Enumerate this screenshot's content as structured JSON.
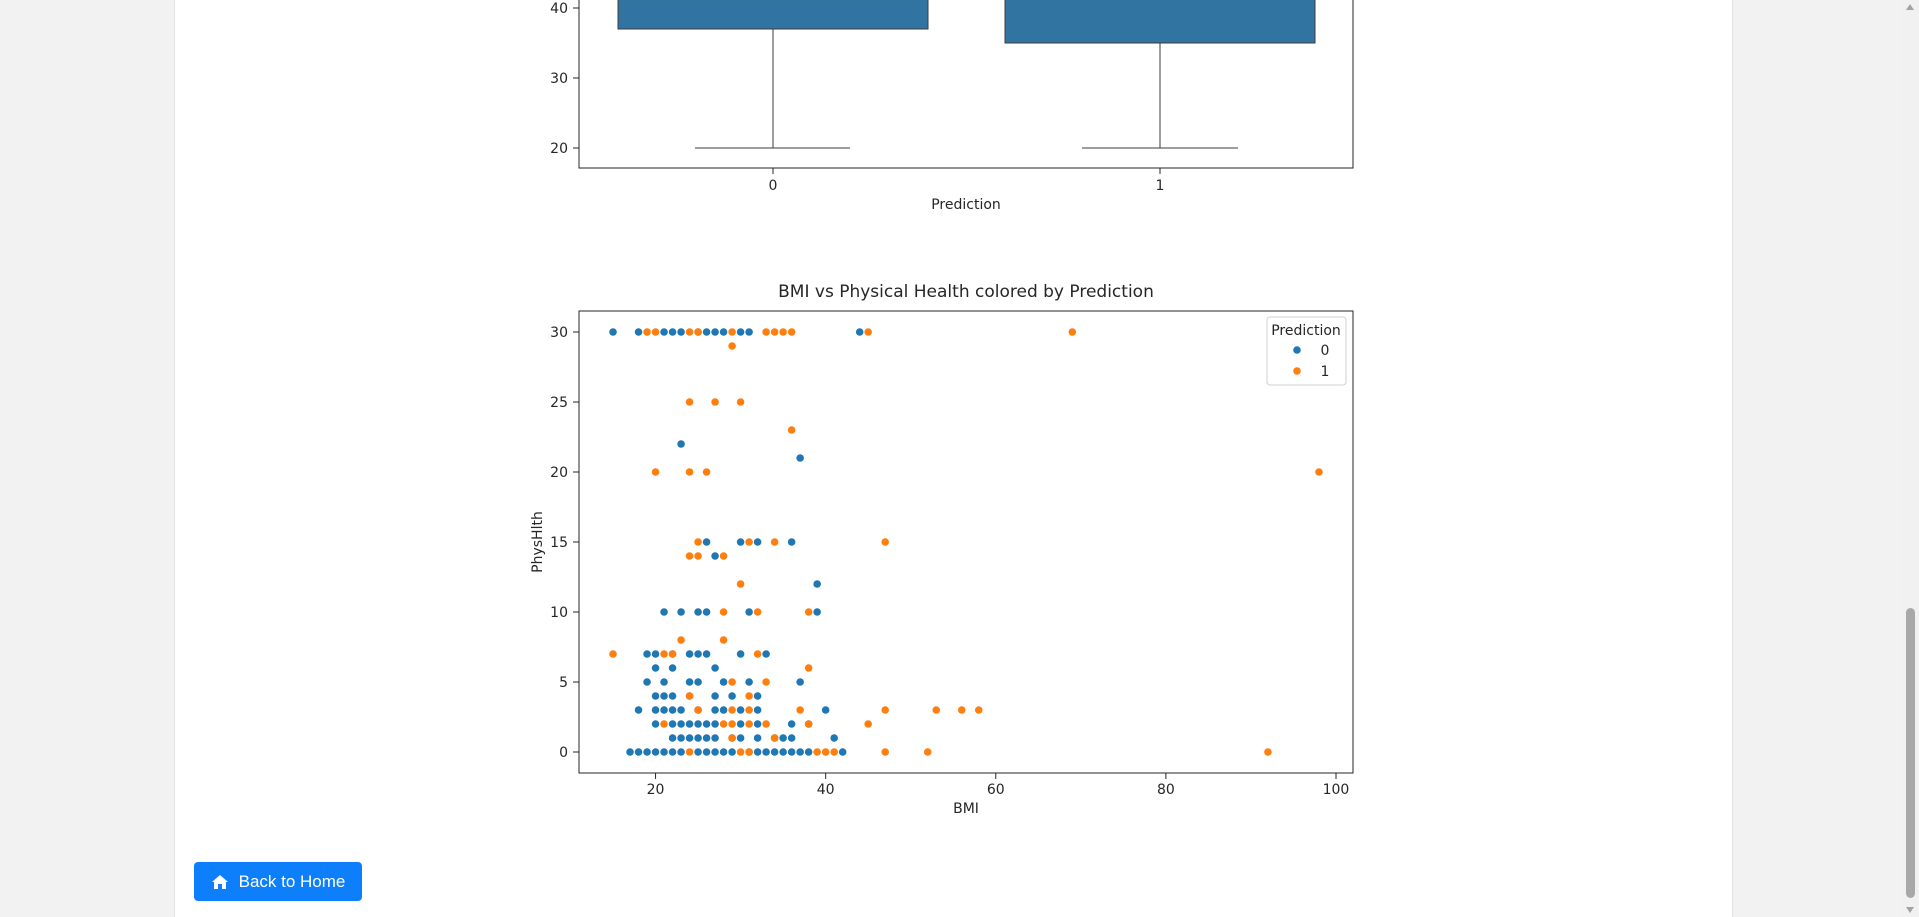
{
  "colors": {
    "series0": "#1f77b4",
    "series1": "#ff7f0e",
    "box_fill": "#3274a1",
    "button": "#0d7ffb"
  },
  "chart_data": [
    {
      "type": "box",
      "partially_visible": true,
      "title": "",
      "xlabel": "Prediction",
      "ylabel": "",
      "categories": [
        "0",
        "1"
      ],
      "box_q1": [
        37,
        35
      ],
      "whisker_low": [
        20,
        20
      ],
      "y_ticks": [
        20,
        30,
        40
      ],
      "grid": false
    },
    {
      "type": "scatter",
      "title": "BMI vs Physical Health colored by Prediction",
      "xlabel": "BMI",
      "ylabel": "PhysHlth",
      "xlim": [
        11,
        102
      ],
      "ylim": [
        -1.5,
        31.5
      ],
      "x_ticks": [
        20,
        40,
        60,
        80,
        100
      ],
      "y_ticks": [
        0,
        5,
        10,
        15,
        20,
        25,
        30
      ],
      "grid": false,
      "legend": {
        "title": "Prediction",
        "position": "top-right",
        "entries": [
          "0",
          "1"
        ]
      },
      "series": [
        {
          "name": "0",
          "points": [
            [
              15,
              30
            ],
            [
              18,
              30
            ],
            [
              21,
              30
            ],
            [
              22,
              30
            ],
            [
              23,
              30
            ],
            [
              25,
              30
            ],
            [
              26,
              30
            ],
            [
              27,
              30
            ],
            [
              28,
              30
            ],
            [
              30,
              30
            ],
            [
              31,
              30
            ],
            [
              44,
              30
            ],
            [
              23,
              22
            ],
            [
              37,
              21
            ],
            [
              26,
              15
            ],
            [
              30,
              15
            ],
            [
              32,
              15
            ],
            [
              36,
              15
            ],
            [
              27,
              14
            ],
            [
              39,
              12
            ],
            [
              21,
              10
            ],
            [
              23,
              10
            ],
            [
              25,
              10
            ],
            [
              26,
              10
            ],
            [
              31,
              10
            ],
            [
              39,
              10
            ],
            [
              19,
              7
            ],
            [
              20,
              7
            ],
            [
              22,
              7
            ],
            [
              24,
              7
            ],
            [
              25,
              7
            ],
            [
              26,
              7
            ],
            [
              30,
              7
            ],
            [
              33,
              7
            ],
            [
              20,
              6
            ],
            [
              22,
              6
            ],
            [
              27,
              6
            ],
            [
              19,
              5
            ],
            [
              21,
              5
            ],
            [
              24,
              5
            ],
            [
              25,
              5
            ],
            [
              28,
              5
            ],
            [
              31,
              5
            ],
            [
              37,
              5
            ],
            [
              20,
              4
            ],
            [
              21,
              4
            ],
            [
              22,
              4
            ],
            [
              24,
              4
            ],
            [
              27,
              4
            ],
            [
              29,
              4
            ],
            [
              32,
              4
            ],
            [
              18,
              3
            ],
            [
              20,
              3
            ],
            [
              21,
              3
            ],
            [
              22,
              3
            ],
            [
              23,
              3
            ],
            [
              25,
              3
            ],
            [
              27,
              3
            ],
            [
              28,
              3
            ],
            [
              30,
              3
            ],
            [
              32,
              3
            ],
            [
              40,
              3
            ],
            [
              20,
              2
            ],
            [
              22,
              2
            ],
            [
              23,
              2
            ],
            [
              24,
              2
            ],
            [
              25,
              2
            ],
            [
              26,
              2
            ],
            [
              27,
              2
            ],
            [
              30,
              2
            ],
            [
              32,
              2
            ],
            [
              36,
              2
            ],
            [
              38,
              2
            ],
            [
              22,
              1
            ],
            [
              23,
              1
            ],
            [
              24,
              1
            ],
            [
              25,
              1
            ],
            [
              26,
              1
            ],
            [
              27,
              1
            ],
            [
              29,
              1
            ],
            [
              30,
              1
            ],
            [
              32,
              1
            ],
            [
              34,
              1
            ],
            [
              35,
              1
            ],
            [
              36,
              1
            ],
            [
              41,
              1
            ],
            [
              17,
              0
            ],
            [
              18,
              0
            ],
            [
              19,
              0
            ],
            [
              20,
              0
            ],
            [
              21,
              0
            ],
            [
              22,
              0
            ],
            [
              23,
              0
            ],
            [
              25,
              0
            ],
            [
              26,
              0
            ],
            [
              27,
              0
            ],
            [
              28,
              0
            ],
            [
              29,
              0
            ],
            [
              31,
              0
            ],
            [
              32,
              0
            ],
            [
              33,
              0
            ],
            [
              34,
              0
            ],
            [
              35,
              0
            ],
            [
              36,
              0
            ],
            [
              37,
              0
            ],
            [
              38,
              0
            ],
            [
              42,
              0
            ]
          ]
        },
        {
          "name": "1",
          "points": [
            [
              19,
              30
            ],
            [
              20,
              30
            ],
            [
              24,
              30
            ],
            [
              25,
              30
            ],
            [
              29,
              30
            ],
            [
              33,
              30
            ],
            [
              34,
              30
            ],
            [
              35,
              30
            ],
            [
              36,
              30
            ],
            [
              45,
              30
            ],
            [
              69,
              30
            ],
            [
              29,
              29
            ],
            [
              24,
              25
            ],
            [
              27,
              25
            ],
            [
              30,
              25
            ],
            [
              36,
              23
            ],
            [
              20,
              20
            ],
            [
              24,
              20
            ],
            [
              26,
              20
            ],
            [
              98,
              20
            ],
            [
              25,
              15
            ],
            [
              31,
              15
            ],
            [
              34,
              15
            ],
            [
              47,
              15
            ],
            [
              24,
              14
            ],
            [
              25,
              14
            ],
            [
              28,
              14
            ],
            [
              30,
              12
            ],
            [
              28,
              10
            ],
            [
              32,
              10
            ],
            [
              38,
              10
            ],
            [
              28,
              8
            ],
            [
              23,
              8
            ],
            [
              15,
              7
            ],
            [
              21,
              7
            ],
            [
              22,
              7
            ],
            [
              32,
              7
            ],
            [
              38,
              6
            ],
            [
              29,
              5
            ],
            [
              33,
              5
            ],
            [
              24,
              4
            ],
            [
              31,
              4
            ],
            [
              25,
              3
            ],
            [
              29,
              3
            ],
            [
              31,
              3
            ],
            [
              37,
              3
            ],
            [
              47,
              3
            ],
            [
              53,
              3
            ],
            [
              56,
              3
            ],
            [
              58,
              3
            ],
            [
              21,
              2
            ],
            [
              28,
              2
            ],
            [
              29,
              2
            ],
            [
              31,
              2
            ],
            [
              33,
              2
            ],
            [
              38,
              2
            ],
            [
              45,
              2
            ],
            [
              29,
              1
            ],
            [
              34,
              1
            ],
            [
              24,
              0
            ],
            [
              30,
              0
            ],
            [
              31,
              0
            ],
            [
              39,
              0
            ],
            [
              40,
              0
            ],
            [
              41,
              0
            ],
            [
              47,
              0
            ],
            [
              52,
              0
            ],
            [
              92,
              0
            ]
          ]
        }
      ]
    }
  ],
  "back_button": {
    "icon": "home-icon",
    "label": "Back to Home"
  }
}
